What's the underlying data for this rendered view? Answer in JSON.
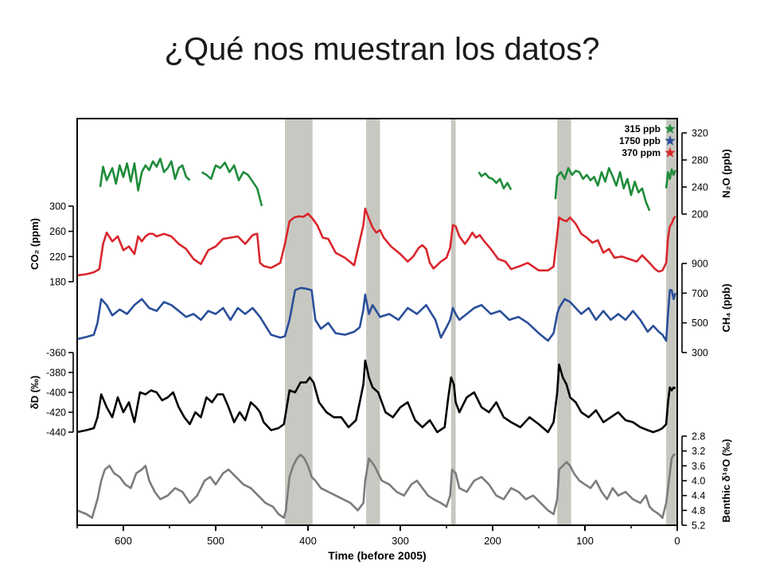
{
  "slide": {
    "title": "¿Qué nos muestran los datos?"
  },
  "chart_data": {
    "type": "line",
    "xlabel": "Time (before 2005)",
    "xlim": [
      650,
      0
    ],
    "x_reversed": true,
    "xticks": [
      "600",
      "500",
      "400",
      "300",
      "200",
      "100",
      "0"
    ],
    "xtick_values": [
      600,
      500,
      400,
      300,
      200,
      100,
      0
    ],
    "legend": {
      "placement": "top-right",
      "entries": [
        {
          "label": "315 ppb",
          "color": "#1e8c3a",
          "marker": "star"
        },
        {
          "label": "1750 ppb",
          "color": "#2a4f9a",
          "marker": "star"
        },
        {
          "label": "370 ppm",
          "color": "#d9262c",
          "marker": "star"
        }
      ]
    },
    "interglacial_bands": [
      [
        425,
        395
      ],
      [
        337,
        322
      ],
      [
        245,
        240
      ],
      [
        130,
        115
      ],
      [
        12,
        0
      ]
    ],
    "band_color": "#c8c8c2",
    "series": [
      {
        "name": "N2O",
        "axis": {
          "side": "right",
          "label": "N₂O (ppb)",
          "ticks": [
            "320",
            "280",
            "240",
            "200"
          ],
          "tick_values": [
            320,
            280,
            240,
            200
          ],
          "ylim": [
            200,
            320
          ]
        },
        "color": "#1e8c3a",
        "segments": [
          {
            "x": [
              625,
              622,
              618,
              612,
              608,
              604,
              600,
              596,
              592,
              588,
              584,
              580,
              576,
              572,
              568,
              564,
              560,
              556,
              552,
              548,
              544,
              540,
              536,
              532,
              528
            ],
            "y": [
              240,
              270,
              250,
              268,
              245,
              272,
              255,
              275,
              248,
              275,
              235,
              262,
              272,
              265,
              278,
              270,
              282,
              262,
              268,
              278,
              252,
              268,
              272,
              255,
              250
            ]
          },
          {
            "x": [
              515,
              510,
              505,
              500,
              495,
              490,
              485,
              480,
              475,
              470,
              465,
              460,
              455,
              450
            ],
            "y": [
              262,
              258,
              252,
              272,
              268,
              276,
              262,
              272,
              250,
              262,
              258,
              248,
              238,
              212
            ]
          },
          {
            "x": [
              215,
              212,
              208,
              204,
              200,
              196,
              192,
              188,
              184,
              180
            ],
            "y": [
              262,
              256,
              260,
              254,
              252,
              246,
              252,
              238,
              246,
              236
            ]
          },
          {
            "x": [
              132,
              130,
              126,
              122,
              118,
              114,
              110,
              106,
              102,
              98,
              94,
              90,
              86,
              82,
              78,
              74,
              70,
              66,
              62,
              58,
              54,
              50,
              46,
              42,
              38,
              34,
              30
            ],
            "y": [
              222,
              256,
              262,
              252,
              268,
              258,
              264,
              262,
              252,
              258,
              250,
              255,
              242,
              262,
              248,
              268,
              256,
              242,
              262,
              238,
              252,
              228,
              248,
              232,
              238,
              218,
              205
            ]
          },
          {
            "x": [
              12,
              10,
              8,
              6,
              4,
              2
            ],
            "y": [
              238,
              262,
              252,
              266,
              258,
              265
            ]
          }
        ]
      },
      {
        "name": "CO2",
        "axis": {
          "side": "left",
          "label": "CO₂ (ppm)",
          "ticks": [
            "300",
            "260",
            "220",
            "180"
          ],
          "tick_values": [
            300,
            260,
            220,
            180
          ],
          "ylim": [
            180,
            300
          ]
        },
        "color": "#d9262c",
        "x": [
          650,
          640,
          632,
          626,
          622,
          618,
          612,
          606,
          600,
          594,
          588,
          584,
          580,
          576,
          572,
          568,
          564,
          556,
          548,
          540,
          532,
          524,
          516,
          508,
          500,
          492,
          484,
          476,
          468,
          460,
          455,
          452,
          448,
          440,
          430,
          425,
          420,
          415,
          410,
          405,
          400,
          395,
          390,
          384,
          378,
          370,
          360,
          350,
          345,
          340,
          338,
          334,
          330,
          326,
          322,
          318,
          310,
          300,
          292,
          286,
          280,
          276,
          272,
          268,
          264,
          256,
          250,
          246,
          243,
          240,
          236,
          230,
          226,
          222,
          218,
          214,
          210,
          202,
          194,
          186,
          180,
          170,
          162,
          150,
          140,
          134,
          130,
          128,
          124,
          120,
          116,
          110,
          104,
          98,
          92,
          86,
          80,
          74,
          68,
          60,
          52,
          44,
          38,
          30,
          24,
          20,
          16,
          12,
          10,
          8,
          6,
          4,
          2
        ],
        "y": [
          190,
          192,
          195,
          200,
          240,
          258,
          244,
          252,
          230,
          236,
          224,
          252,
          244,
          252,
          256,
          256,
          252,
          256,
          252,
          240,
          232,
          216,
          208,
          230,
          236,
          248,
          250,
          252,
          240,
          254,
          256,
          210,
          205,
          202,
          210,
          240,
          276,
          282,
          284,
          283,
          288,
          280,
          270,
          250,
          248,
          226,
          218,
          206,
          238,
          270,
          296,
          280,
          266,
          258,
          262,
          250,
          236,
          224,
          212,
          220,
          234,
          238,
          232,
          210,
          201,
          212,
          218,
          234,
          270,
          268,
          252,
          240,
          248,
          258,
          250,
          254,
          246,
          232,
          216,
          212,
          200,
          205,
          210,
          198,
          198,
          204,
          255,
          282,
          278,
          276,
          282,
          272,
          256,
          250,
          242,
          246,
          226,
          232,
          218,
          220,
          216,
          212,
          222,
          210,
          200,
          196,
          198,
          210,
          250,
          268,
          272,
          280,
          284
        ]
      },
      {
        "name": "CH4",
        "axis": {
          "side": "right",
          "label": "CH₄ (ppb)",
          "ticks": [
            "900",
            "700",
            "500",
            "300"
          ],
          "tick_values": [
            900,
            700,
            500,
            300
          ],
          "ylim": [
            300,
            900
          ]
        },
        "color": "#2a4f9a",
        "x": [
          650,
          640,
          632,
          628,
          624,
          618,
          612,
          604,
          596,
          588,
          580,
          572,
          564,
          556,
          548,
          540,
          532,
          524,
          516,
          508,
          500,
          492,
          484,
          476,
          468,
          460,
          452,
          448,
          440,
          430,
          425,
          420,
          414,
          408,
          402,
          396,
          392,
          386,
          378,
          370,
          360,
          350,
          344,
          340,
          338,
          334,
          330,
          322,
          312,
          302,
          292,
          282,
          272,
          262,
          256,
          250,
          246,
          243,
          240,
          236,
          228,
          220,
          212,
          202,
          192,
          182,
          172,
          162,
          150,
          140,
          134,
          130,
          128,
          122,
          116,
          110,
          104,
          96,
          88,
          80,
          72,
          64,
          56,
          48,
          40,
          32,
          26,
          20,
          16,
          12,
          10,
          8,
          6,
          4,
          2
        ],
        "y": [
          390,
          405,
          420,
          500,
          660,
          620,
          550,
          590,
          560,
          620,
          660,
          600,
          580,
          640,
          620,
          580,
          540,
          560,
          520,
          580,
          560,
          600,
          520,
          600,
          560,
          600,
          540,
          500,
          420,
          400,
          410,
          520,
          720,
          735,
          730,
          720,
          520,
          460,
          500,
          430,
          420,
          440,
          470,
          590,
          690,
          560,
          620,
          540,
          560,
          520,
          600,
          560,
          620,
          520,
          400,
          470,
          520,
          600,
          560,
          520,
          560,
          600,
          620,
          560,
          580,
          520,
          540,
          500,
          430,
          380,
          430,
          560,
          600,
          660,
          640,
          600,
          560,
          600,
          520,
          580,
          520,
          560,
          520,
          580,
          520,
          440,
          480,
          440,
          420,
          380,
          560,
          720,
          720,
          660,
          700
        ]
      },
      {
        "name": "δD",
        "axis": {
          "side": "left",
          "label": "δD (‰)",
          "ticks": [
            "-360",
            "-380",
            "-400",
            "-420",
            "-440"
          ],
          "tick_values": [
            -360,
            -380,
            -400,
            -420,
            -440
          ],
          "ylim": [
            -440,
            -360
          ]
        },
        "color": "#000000",
        "x": [
          650,
          640,
          632,
          628,
          624,
          618,
          612,
          606,
          600,
          594,
          588,
          582,
          576,
          570,
          564,
          558,
          552,
          546,
          540,
          534,
          528,
          522,
          516,
          510,
          504,
          498,
          492,
          486,
          480,
          474,
          468,
          462,
          456,
          452,
          448,
          440,
          432,
          426,
          420,
          414,
          408,
          402,
          398,
          394,
          388,
          380,
          372,
          364,
          356,
          348,
          344,
          340,
          338,
          334,
          330,
          324,
          316,
          308,
          300,
          292,
          284,
          276,
          268,
          260,
          252,
          248,
          245,
          242,
          240,
          236,
          228,
          220,
          212,
          204,
          196,
          188,
          180,
          170,
          160,
          150,
          140,
          134,
          130,
          128,
          124,
          120,
          116,
          110,
          104,
          96,
          88,
          80,
          72,
          64,
          56,
          48,
          40,
          32,
          26,
          20,
          16,
          12,
          10,
          8,
          6,
          4,
          2
        ],
        "y": [
          -440,
          -438,
          -436,
          -425,
          -402,
          -415,
          -425,
          -405,
          -420,
          -410,
          -430,
          -400,
          -402,
          -398,
          -400,
          -408,
          -405,
          -400,
          -415,
          -425,
          -432,
          -420,
          -425,
          -405,
          -410,
          -402,
          -402,
          -415,
          -430,
          -420,
          -428,
          -410,
          -415,
          -420,
          -430,
          -438,
          -436,
          -432,
          -398,
          -400,
          -390,
          -390,
          -385,
          -390,
          -410,
          -420,
          -425,
          -425,
          -435,
          -428,
          -410,
          -392,
          -368,
          -385,
          -395,
          -400,
          -420,
          -425,
          -415,
          -410,
          -428,
          -435,
          -428,
          -440,
          -435,
          -405,
          -385,
          -392,
          -410,
          -420,
          -405,
          -400,
          -415,
          -420,
          -410,
          -425,
          -430,
          -435,
          -425,
          -432,
          -440,
          -430,
          -400,
          -372,
          -385,
          -392,
          -405,
          -410,
          -420,
          -425,
          -418,
          -430,
          -425,
          -420,
          -428,
          -430,
          -435,
          -438,
          -440,
          -438,
          -436,
          -432,
          -410,
          -395,
          -398,
          -395,
          -396
        ]
      },
      {
        "name": "Benthic δ18O",
        "axis": {
          "side": "right",
          "label": "Benthic δ¹⁸O (‰)",
          "ticks": [
            "2.8",
            "3.2",
            "3.6",
            "4.0",
            "4.4",
            "4.8",
            "5.2"
          ],
          "tick_values": [
            2.8,
            3.2,
            3.6,
            4.0,
            4.4,
            4.8,
            5.2
          ],
          "ylim": [
            2.8,
            5.2
          ],
          "inverted": true
        },
        "color": "#7c7c7c",
        "x": [
          650,
          640,
          634,
          628,
          624,
          620,
          615,
          610,
          604,
          598,
          592,
          586,
          580,
          576,
          572,
          566,
          560,
          552,
          544,
          536,
          528,
          520,
          512,
          506,
          500,
          492,
          486,
          478,
          470,
          462,
          454,
          446,
          438,
          432,
          426,
          424,
          420,
          416,
          412,
          408,
          404,
          400,
          396,
          392,
          386,
          378,
          370,
          362,
          354,
          346,
          340,
          338,
          334,
          328,
          320,
          312,
          304,
          296,
          288,
          282,
          276,
          270,
          264,
          256,
          250,
          246,
          244,
          240,
          236,
          228,
          220,
          212,
          204,
          196,
          188,
          180,
          172,
          164,
          156,
          148,
          140,
          134,
          130,
          128,
          124,
          120,
          116,
          112,
          106,
          100,
          94,
          88,
          82,
          76,
          70,
          64,
          56,
          48,
          40,
          34,
          30,
          26,
          20,
          16,
          12,
          8,
          6,
          4,
          2
        ],
        "y": [
          4.8,
          4.9,
          5.0,
          4.5,
          4.0,
          3.7,
          3.6,
          3.8,
          3.9,
          4.1,
          4.2,
          3.8,
          3.7,
          3.6,
          4.0,
          4.3,
          4.5,
          4.4,
          4.2,
          4.3,
          4.6,
          4.4,
          4.0,
          3.9,
          4.1,
          3.8,
          3.7,
          3.9,
          4.1,
          4.2,
          4.4,
          4.6,
          4.7,
          4.9,
          5.0,
          4.8,
          3.9,
          3.6,
          3.4,
          3.3,
          3.4,
          3.6,
          3.9,
          4.0,
          4.2,
          4.3,
          4.4,
          4.5,
          4.6,
          4.8,
          4.6,
          4.0,
          3.4,
          3.6,
          4.0,
          4.1,
          4.3,
          4.4,
          4.1,
          4.0,
          4.2,
          4.4,
          4.5,
          4.6,
          4.7,
          4.4,
          3.7,
          3.8,
          4.2,
          4.3,
          4.0,
          3.9,
          4.1,
          4.4,
          4.5,
          4.2,
          4.3,
          4.5,
          4.4,
          4.6,
          4.8,
          4.9,
          4.5,
          3.7,
          3.6,
          3.5,
          3.6,
          3.8,
          4.0,
          4.1,
          4.2,
          4.0,
          4.3,
          4.5,
          4.2,
          4.4,
          4.3,
          4.5,
          4.6,
          4.4,
          4.7,
          4.8,
          4.9,
          5.0,
          4.6,
          3.8,
          3.4,
          3.3,
          3.3
        ]
      }
    ]
  }
}
